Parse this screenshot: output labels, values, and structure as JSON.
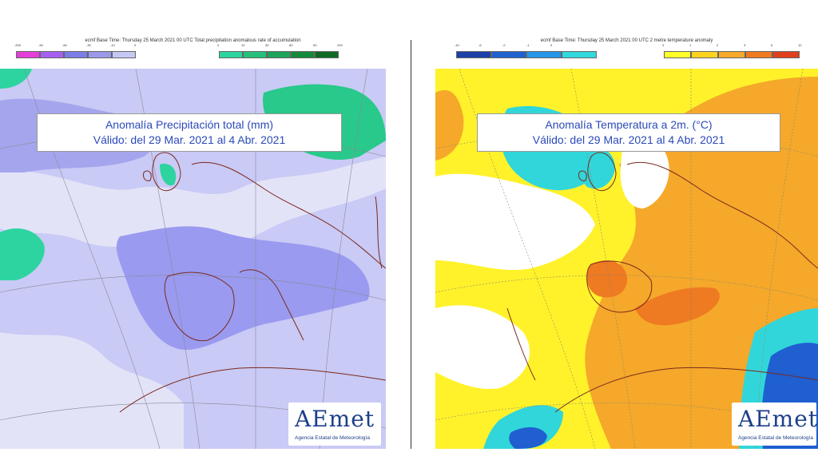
{
  "precip": {
    "header_text": "ecmf  Base Time: Thursday 25 March 2021 00 UTC Total precipitation anomalous rate of accumulation",
    "neg_ticks": [
      "-200",
      "-90",
      "-60",
      "-30",
      "-10",
      "0"
    ],
    "neg_colors": [
      "#e43fd8",
      "#a65ff0",
      "#7a7ee6",
      "#9a98ea",
      "#c6c8f4"
    ],
    "pos_ticks": [
      "0",
      "10",
      "30",
      "60",
      "90",
      "200"
    ],
    "pos_colors": [
      "#2ed4a0",
      "#26c07a",
      "#1ea45a",
      "#168a3c",
      "#0f6a26"
    ],
    "title_line1": "Anomalía Precipitación total (mm)",
    "title_line2": "Válido: del 29 Mar. 2021 al 4 Abr. 2021"
  },
  "temp": {
    "header_text": "ecmf  Base Time: Thursday 25 March 2021 00 UTC 2 metre temperature anomaly",
    "neg_ticks": [
      "-10",
      "-6",
      "-2",
      "-1",
      "0"
    ],
    "neg_colors": [
      "#1c3fa8",
      "#1f62cf",
      "#2696e8",
      "#31d8de"
    ],
    "pos_ticks": [
      "0",
      "1",
      "2",
      "3",
      "6",
      "10"
    ],
    "pos_colors": [
      "#ffff2a",
      "#ffd21e",
      "#f5a82a",
      "#f07a1e",
      "#e0401e"
    ],
    "title_line1": "Anomalía Temperatura a 2m. (°C)",
    "title_line2": "Válido: del 29 Mar. 2021 al 4 Abr. 2021"
  },
  "logo": {
    "wordmark": "AEmet",
    "organization": "Agencia Estatal de Meteorología"
  },
  "colors": {
    "title_text": "#2b4ab8",
    "precip_base": "#c9caf5",
    "precip_deficit": "#9a9af0",
    "precip_surplus": "#28c98a",
    "temp_warm": "#fff22a",
    "temp_warmer": "#f5a82a",
    "temp_hot": "#ee7a22",
    "temp_cool": "#31d6da",
    "temp_cold": "#1f5fd0",
    "coast": "#7a2a1e"
  }
}
